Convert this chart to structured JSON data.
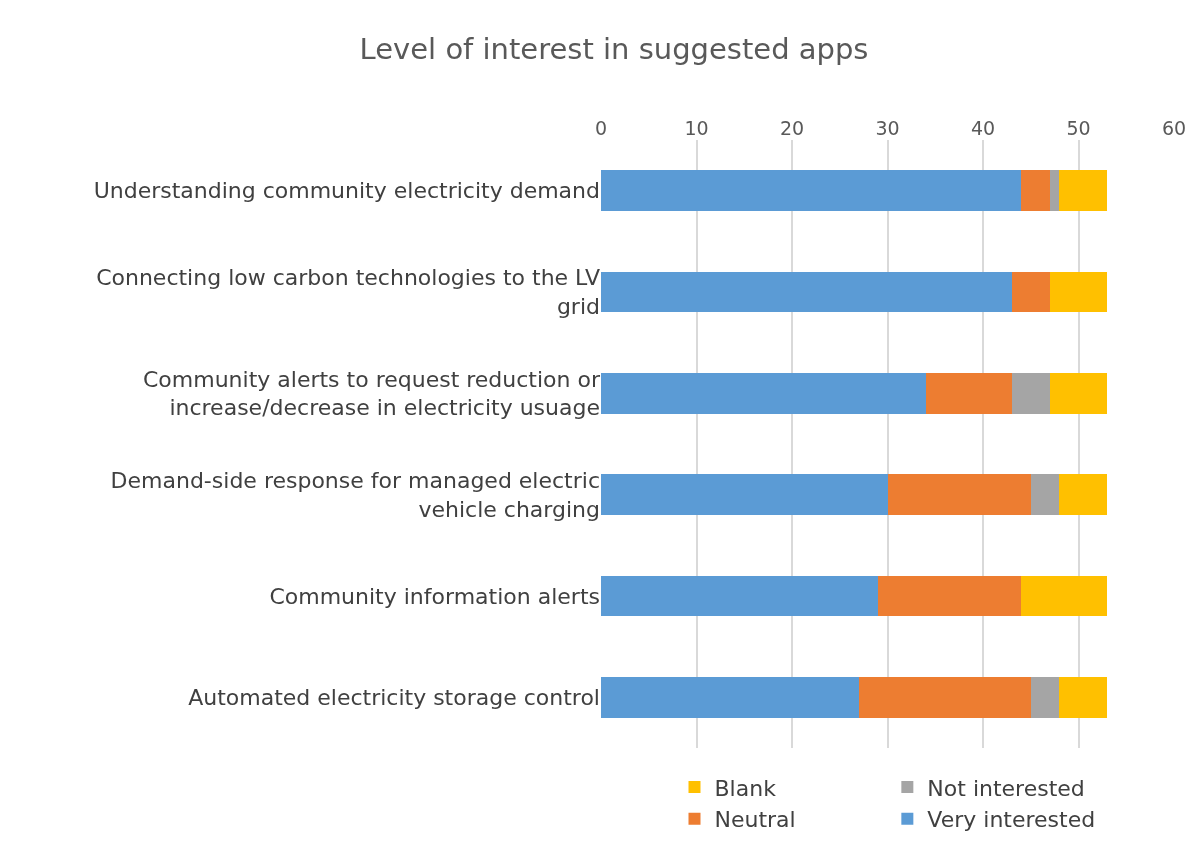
{
  "chart_data": {
    "type": "bar",
    "title": "Level of interest in suggested apps",
    "orientation": "horizontal",
    "stacked": true,
    "categories": [
      "Understanding community electricity demand",
      "Connecting low carbon technologies to the LV grid",
      "Community alerts to request reduction or increase/decrease in electricity usuage",
      "Demand-side response for managed electric vehicle charging",
      "Community information alerts",
      "Automated electricity storage control"
    ],
    "series": [
      {
        "name": "Very interested",
        "color": "#5b9bd5",
        "values": [
          44,
          43,
          34,
          30,
          29,
          27
        ]
      },
      {
        "name": "Neutral",
        "color": "#ed7d31",
        "values": [
          3,
          4,
          9,
          15,
          15,
          18
        ]
      },
      {
        "name": "Not interested",
        "color": "#a5a5a5",
        "values": [
          1,
          0,
          4,
          3,
          0,
          3
        ]
      },
      {
        "name": "Blank",
        "color": "#ffc000",
        "values": [
          5,
          6,
          6,
          5,
          9,
          5
        ]
      }
    ],
    "xlim": [
      0,
      60
    ],
    "xticks": [
      0,
      10,
      20,
      30,
      40,
      50,
      60
    ],
    "grid": "x",
    "legend": "bottom"
  }
}
